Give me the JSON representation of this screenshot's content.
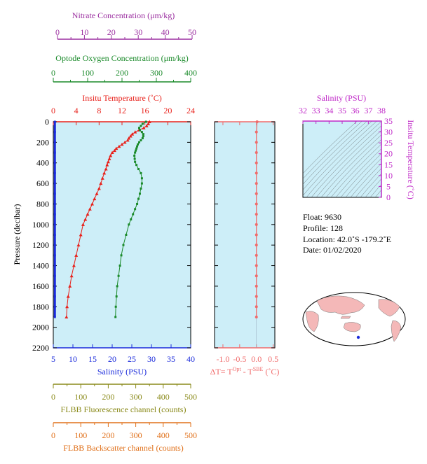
{
  "colors": {
    "panel_bg": "#cdeef8",
    "nitrate": "#9b2fa0",
    "oxygen": "#1a8a2a",
    "temperature": "#e8201a",
    "salinity": "#1a2adb",
    "delta_t": "#f06a6a",
    "ts": "#c02ac8",
    "fluorescence": "#8a8a1a",
    "backscatter": "#e0701a"
  },
  "axes": {
    "nitrate": {
      "title": "Nitrate Concentration (μm/kg)",
      "ticks": [
        "0",
        "10",
        "20",
        "30",
        "40",
        "50"
      ]
    },
    "oxygen": {
      "title": "Optode Oxygen Concentration (μm/kg)",
      "ticks": [
        "0",
        "100",
        "200",
        "300",
        "400"
      ]
    },
    "temperature": {
      "title": "Insitu Temperature (˚C)",
      "ticks": [
        "0",
        "4",
        "8",
        "12",
        "16",
        "20",
        "24"
      ]
    },
    "pressure": {
      "title": "Pressure (decibar)",
      "ticks": [
        "0",
        "200",
        "400",
        "600",
        "800",
        "1000",
        "1200",
        "1400",
        "1600",
        "1800",
        "2000",
        "2200"
      ]
    },
    "salinity": {
      "title": "Salinity (PSU)",
      "ticks": [
        "5",
        "10",
        "15",
        "20",
        "25",
        "30",
        "35",
        "40"
      ]
    },
    "delta_t": {
      "title_prefix": "ΔT= T",
      "sup1": "Opt",
      "mid": " - T",
      "sup2": "SBE",
      "suffix": " (˚C)",
      "ticks": [
        "-1.0",
        "-0.5",
        "0.0",
        "0.5"
      ]
    },
    "fluorescence": {
      "title": "FLBB Fluorescence channel (counts)",
      "ticks": [
        "0",
        "100",
        "200",
        "300",
        "400",
        "500"
      ]
    },
    "backscatter": {
      "title": "FLBB Backscatter channel (counts)",
      "ticks": [
        "0",
        "100",
        "200",
        "300",
        "400",
        "500"
      ]
    },
    "ts_salinity": {
      "title": "Salinity (PSU)",
      "ticks": [
        "32",
        "33",
        "34",
        "35",
        "36",
        "37",
        "38"
      ]
    },
    "ts_temperature": {
      "title": "Insitu Temperature (˚C)",
      "ticks": [
        "0",
        "5",
        "10",
        "15",
        "20",
        "25",
        "30",
        "35"
      ]
    }
  },
  "info": {
    "float": "Float:  9630",
    "profile": "Profile:  128",
    "location": "Location:  42.0˚S  -179.2˚E",
    "date": "Date:  01/02/2020"
  },
  "chart_data": [
    {
      "type": "line",
      "title": "",
      "ylabel": "Pressure (decibar)",
      "ylim": [
        2200,
        0
      ],
      "series": [
        {
          "name": "Insitu Temperature (˚C)",
          "xlim": [
            0,
            24
          ],
          "points": [
            [
              16.8,
              0
            ],
            [
              16.6,
              20
            ],
            [
              16.3,
              40
            ],
            [
              15.8,
              60
            ],
            [
              15.0,
              80
            ],
            [
              14.3,
              100
            ],
            [
              13.8,
              120
            ],
            [
              13.5,
              140
            ],
            [
              13.2,
              160
            ],
            [
              13.0,
              180
            ],
            [
              12.5,
              200
            ],
            [
              12.0,
              220
            ],
            [
              11.5,
              240
            ],
            [
              11.0,
              260
            ],
            [
              10.7,
              280
            ],
            [
              10.3,
              300
            ],
            [
              10.0,
              330
            ],
            [
              9.8,
              360
            ],
            [
              9.6,
              390
            ],
            [
              9.4,
              420
            ],
            [
              9.2,
              460
            ],
            [
              8.9,
              500
            ],
            [
              8.6,
              550
            ],
            [
              8.3,
              600
            ],
            [
              8.0,
              650
            ],
            [
              7.6,
              700
            ],
            [
              7.2,
              750
            ],
            [
              6.8,
              800
            ],
            [
              6.4,
              850
            ],
            [
              6.0,
              900
            ],
            [
              5.6,
              950
            ],
            [
              5.2,
              1000
            ],
            [
              4.8,
              1100
            ],
            [
              4.4,
              1200
            ],
            [
              4.0,
              1300
            ],
            [
              3.6,
              1400
            ],
            [
              3.2,
              1500
            ],
            [
              2.9,
              1600
            ],
            [
              2.6,
              1700
            ],
            [
              2.4,
              1800
            ],
            [
              2.3,
              1900
            ]
          ]
        },
        {
          "name": "Optode Oxygen Concentration (μm/kg)",
          "xlim": [
            0,
            400
          ],
          "points": [
            [
              270,
              0
            ],
            [
              260,
              20
            ],
            [
              255,
              40
            ],
            [
              250,
              60
            ],
            [
              252,
              80
            ],
            [
              258,
              100
            ],
            [
              262,
              120
            ],
            [
              262,
              140
            ],
            [
              260,
              160
            ],
            [
              255,
              180
            ],
            [
              250,
              200
            ],
            [
              246,
              220
            ],
            [
              244,
              240
            ],
            [
              242,
              260
            ],
            [
              240,
              280
            ],
            [
              238,
              300
            ],
            [
              236,
              330
            ],
            [
              237,
              360
            ],
            [
              238,
              390
            ],
            [
              242,
              420
            ],
            [
              248,
              460
            ],
            [
              255,
              500
            ],
            [
              258,
              550
            ],
            [
              258,
              600
            ],
            [
              255,
              650
            ],
            [
              252,
              700
            ],
            [
              248,
              750
            ],
            [
              244,
              800
            ],
            [
              238,
              850
            ],
            [
              232,
              900
            ],
            [
              226,
              950
            ],
            [
              220,
              1000
            ],
            [
              212,
              1100
            ],
            [
              204,
              1200
            ],
            [
              198,
              1300
            ],
            [
              194,
              1400
            ],
            [
              190,
              1500
            ],
            [
              186,
              1600
            ],
            [
              184,
              1700
            ],
            [
              182,
              1800
            ],
            [
              181,
              1900
            ]
          ]
        },
        {
          "name": "Salinity (PSU)",
          "xlim": [
            5,
            40
          ],
          "points": [
            [
              5.4,
              0
            ],
            [
              5.4,
              100
            ],
            [
              5.4,
              200
            ],
            [
              5.4,
              300
            ],
            [
              5.4,
              400
            ],
            [
              5.4,
              500
            ],
            [
              5.4,
              600
            ],
            [
              5.4,
              700
            ],
            [
              5.4,
              800
            ],
            [
              5.4,
              900
            ],
            [
              5.4,
              1000
            ],
            [
              5.4,
              1100
            ],
            [
              5.4,
              1200
            ],
            [
              5.4,
              1300
            ],
            [
              5.4,
              1400
            ],
            [
              5.4,
              1500
            ],
            [
              5.4,
              1600
            ],
            [
              5.4,
              1700
            ],
            [
              5.4,
              1800
            ],
            [
              5.4,
              1900
            ]
          ]
        }
      ]
    },
    {
      "type": "scatter",
      "xlabel": "ΔT= TOpt - TSBE (˚C)",
      "xlim": [
        -1.25,
        0.55
      ],
      "ylim": [
        2200,
        0
      ],
      "series": [
        {
          "name": "ΔT",
          "points": [
            [
              0.02,
              0
            ],
            [
              0.0,
              100
            ],
            [
              0.0,
              200
            ],
            [
              0.0,
              300
            ],
            [
              0.0,
              400
            ],
            [
              0.0,
              500
            ],
            [
              0.0,
              600
            ],
            [
              0.0,
              700
            ],
            [
              0.0,
              800
            ],
            [
              0.0,
              900
            ],
            [
              0.0,
              1000
            ],
            [
              0.0,
              1100
            ],
            [
              0.0,
              1200
            ],
            [
              0.0,
              1300
            ],
            [
              0.0,
              1400
            ],
            [
              0.0,
              1500
            ],
            [
              0.0,
              1600
            ],
            [
              0.0,
              1700
            ],
            [
              0.0,
              1800
            ],
            [
              0.0,
              1900
            ]
          ]
        }
      ]
    },
    {
      "type": "line",
      "xlabel": "Salinity (PSU)",
      "ylabel": "Insitu Temperature (˚C)",
      "xlim": [
        32,
        38
      ],
      "ylim": [
        0,
        35
      ],
      "series": []
    }
  ]
}
